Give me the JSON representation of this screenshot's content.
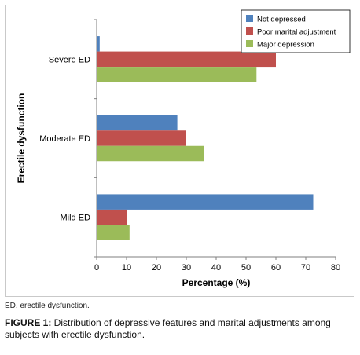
{
  "chart_data": {
    "type": "bar",
    "orientation": "horizontal",
    "categories": [
      "Severe ED",
      "Moderate ED",
      "Mild ED"
    ],
    "series": [
      {
        "name": "Not depressed",
        "color": "#4f81bd",
        "values": [
          1,
          27,
          72.5
        ]
      },
      {
        "name": "Poor marital adjustment",
        "color": "#c0504d",
        "values": [
          60,
          30,
          10
        ]
      },
      {
        "name": "Major depression",
        "color": "#9bbb59",
        "values": [
          53.5,
          36,
          11
        ]
      }
    ],
    "xlabel": "Percentage (%)",
    "ylabel": "Erectile dysfunction",
    "xlim": [
      0,
      80
    ],
    "xticks": [
      "0",
      "10",
      "20",
      "30",
      "40",
      "50",
      "60",
      "70",
      "80"
    ],
    "legend_position": "top-right",
    "grid": false
  },
  "footnote": "ED, erectile dysfunction.",
  "caption": {
    "label": "FIGURE 1:",
    "text": " Distribution of depressive features and marital adjustments among subjects with erectile dysfunction."
  }
}
